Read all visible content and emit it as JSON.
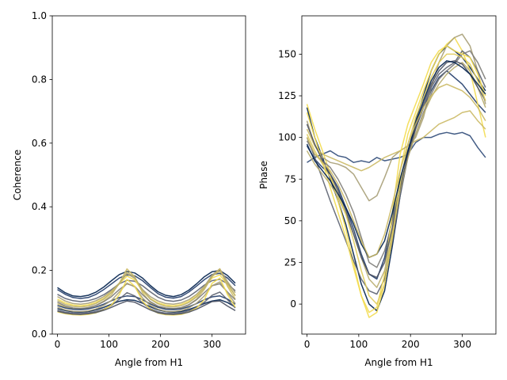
{
  "chart_data": [
    {
      "type": "line",
      "xlabel": "Angle from H1",
      "ylabel": "Coherence",
      "xlim": [
        -10,
        365
      ],
      "ylim": [
        0,
        1.0
      ],
      "xticks": [
        0,
        100,
        200,
        300
      ],
      "yticks": [
        0.0,
        0.2,
        0.4,
        0.6,
        0.8,
        1.0
      ],
      "ytick_labels": [
        "0.0",
        "0.2",
        "0.4",
        "0.6",
        "0.8",
        "1.0"
      ],
      "grid": false,
      "x": [
        0,
        15,
        30,
        45,
        60,
        75,
        90,
        105,
        120,
        135,
        150,
        165,
        180,
        195,
        210,
        225,
        240,
        255,
        270,
        285,
        300,
        315,
        330,
        345
      ],
      "series": [
        {
          "color": "#00204c",
          "values": [
            0.146,
            0.13,
            0.12,
            0.118,
            0.122,
            0.132,
            0.148,
            0.168,
            0.187,
            0.197,
            0.192,
            0.176,
            0.153,
            0.133,
            0.122,
            0.118,
            0.124,
            0.138,
            0.158,
            0.18,
            0.196,
            0.2,
            0.184,
            0.16
          ]
        },
        {
          "color": "#1f3a68",
          "values": [
            0.14,
            0.125,
            0.115,
            0.112,
            0.115,
            0.125,
            0.14,
            0.158,
            0.176,
            0.186,
            0.183,
            0.168,
            0.147,
            0.127,
            0.116,
            0.113,
            0.118,
            0.132,
            0.151,
            0.171,
            0.187,
            0.191,
            0.176,
            0.152
          ]
        },
        {
          "color": "#5c6270",
          "values": [
            0.125,
            0.112,
            0.105,
            0.102,
            0.105,
            0.112,
            0.124,
            0.14,
            0.158,
            0.169,
            0.166,
            0.152,
            0.133,
            0.116,
            0.106,
            0.103,
            0.107,
            0.118,
            0.135,
            0.154,
            0.168,
            0.172,
            0.158,
            0.136
          ]
        },
        {
          "color": "#a69d75",
          "values": [
            0.118,
            0.104,
            0.096,
            0.094,
            0.097,
            0.105,
            0.118,
            0.136,
            0.16,
            0.19,
            0.175,
            0.14,
            0.118,
            0.104,
            0.096,
            0.094,
            0.098,
            0.108,
            0.125,
            0.15,
            0.185,
            0.205,
            0.165,
            0.13
          ]
        },
        {
          "color": "#f3dc4f",
          "values": [
            0.11,
            0.098,
            0.091,
            0.089,
            0.092,
            0.1,
            0.113,
            0.132,
            0.158,
            0.182,
            0.17,
            0.135,
            0.112,
            0.098,
            0.091,
            0.089,
            0.093,
            0.103,
            0.12,
            0.146,
            0.176,
            0.186,
            0.154,
            0.122
          ]
        },
        {
          "color": "#cbb964",
          "values": [
            0.095,
            0.085,
            0.08,
            0.079,
            0.082,
            0.09,
            0.104,
            0.124,
            0.16,
            0.205,
            0.18,
            0.13,
            0.1,
            0.086,
            0.08,
            0.079,
            0.082,
            0.092,
            0.11,
            0.14,
            0.18,
            0.205,
            0.15,
            0.11
          ]
        },
        {
          "color": "#7d7c78",
          "values": [
            0.1,
            0.088,
            0.082,
            0.08,
            0.083,
            0.09,
            0.102,
            0.118,
            0.14,
            0.158,
            0.15,
            0.124,
            0.102,
            0.088,
            0.082,
            0.08,
            0.083,
            0.092,
            0.108,
            0.13,
            0.152,
            0.158,
            0.132,
            0.108
          ]
        },
        {
          "color": "#1f3a68",
          "values": [
            0.09,
            0.082,
            0.078,
            0.077,
            0.079,
            0.085,
            0.094,
            0.105,
            0.115,
            0.12,
            0.118,
            0.108,
            0.095,
            0.084,
            0.078,
            0.077,
            0.079,
            0.086,
            0.096,
            0.108,
            0.117,
            0.12,
            0.11,
            0.094
          ]
        },
        {
          "color": "#00204c",
          "values": [
            0.08,
            0.074,
            0.07,
            0.069,
            0.071,
            0.076,
            0.084,
            0.094,
            0.103,
            0.108,
            0.106,
            0.097,
            0.086,
            0.076,
            0.071,
            0.069,
            0.071,
            0.077,
            0.086,
            0.096,
            0.104,
            0.108,
            0.099,
            0.085
          ]
        },
        {
          "color": "#5c6270",
          "values": [
            0.075,
            0.069,
            0.066,
            0.065,
            0.067,
            0.071,
            0.078,
            0.09,
            0.11,
            0.13,
            0.12,
            0.098,
            0.08,
            0.07,
            0.066,
            0.065,
            0.067,
            0.073,
            0.084,
            0.1,
            0.122,
            0.132,
            0.108,
            0.082
          ]
        },
        {
          "color": "#a69d75",
          "values": [
            0.085,
            0.076,
            0.072,
            0.071,
            0.073,
            0.079,
            0.09,
            0.106,
            0.132,
            0.16,
            0.148,
            0.114,
            0.09,
            0.078,
            0.072,
            0.071,
            0.074,
            0.082,
            0.097,
            0.12,
            0.152,
            0.164,
            0.13,
            0.096
          ]
        },
        {
          "color": "#f3dc4f",
          "values": [
            0.07,
            0.064,
            0.061,
            0.06,
            0.062,
            0.067,
            0.076,
            0.092,
            0.124,
            0.172,
            0.15,
            0.104,
            0.078,
            0.066,
            0.061,
            0.06,
            0.062,
            0.069,
            0.082,
            0.108,
            0.16,
            0.176,
            0.124,
            0.085
          ]
        },
        {
          "color": "#4a5060",
          "values": [
            0.072,
            0.066,
            0.063,
            0.062,
            0.064,
            0.068,
            0.075,
            0.084,
            0.095,
            0.104,
            0.1,
            0.088,
            0.076,
            0.067,
            0.063,
            0.062,
            0.064,
            0.069,
            0.078,
            0.09,
            0.102,
            0.104,
            0.088,
            0.074
          ]
        },
        {
          "color": "#b8ad6e",
          "values": [
            0.105,
            0.093,
            0.087,
            0.085,
            0.088,
            0.096,
            0.11,
            0.13,
            0.158,
            0.195,
            0.178,
            0.138,
            0.11,
            0.095,
            0.087,
            0.085,
            0.089,
            0.099,
            0.117,
            0.145,
            0.182,
            0.198,
            0.16,
            0.12
          ]
        }
      ]
    },
    {
      "type": "line",
      "xlabel": "Angle from H1",
      "ylabel": "Phase",
      "xlim": [
        -10,
        365
      ],
      "ylim": [
        -18,
        173
      ],
      "xticks": [
        0,
        100,
        200,
        300
      ],
      "yticks": [
        0,
        25,
        50,
        75,
        100,
        125,
        150
      ],
      "grid": false,
      "x": [
        0,
        15,
        30,
        45,
        60,
        75,
        90,
        105,
        120,
        135,
        150,
        165,
        180,
        195,
        210,
        225,
        240,
        255,
        270,
        285,
        300,
        315,
        330,
        345
      ],
      "series": [
        {
          "color": "#00204c",
          "values": [
            118,
            100,
            88,
            75,
            62,
            48,
            30,
            12,
            0,
            -4,
            8,
            35,
            65,
            90,
            110,
            125,
            140,
            150,
            155,
            152,
            148,
            142,
            135,
            128
          ]
        },
        {
          "color": "#1f3a68",
          "values": [
            95,
            87,
            82,
            78,
            70,
            58,
            45,
            30,
            18,
            15,
            28,
            52,
            75,
            92,
            106,
            118,
            128,
            136,
            140,
            136,
            132,
            126,
            120,
            115
          ]
        },
        {
          "color": "#2f4a78",
          "values": [
            85,
            88,
            90,
            92,
            89,
            88,
            85,
            86,
            85,
            88,
            86,
            87,
            88,
            90,
            97,
            100,
            100,
            102,
            103,
            102,
            103,
            101,
            94,
            88
          ]
        },
        {
          "color": "#f3dc4f",
          "values": [
            120,
            105,
            92,
            78,
            62,
            45,
            25,
            5,
            -8,
            -5,
            12,
            45,
            80,
            102,
            115,
            128,
            140,
            150,
            156,
            160,
            152,
            140,
            120,
            100
          ]
        },
        {
          "color": "#a69d75",
          "values": [
            110,
            95,
            88,
            85,
            84,
            82,
            78,
            70,
            62,
            65,
            76,
            88,
            92,
            95,
            100,
            112,
            130,
            145,
            155,
            160,
            162,
            155,
            140,
            120
          ]
        },
        {
          "color": "#5c6270",
          "values": [
            100,
            88,
            75,
            62,
            50,
            38,
            26,
            15,
            8,
            6,
            15,
            38,
            65,
            88,
            105,
            118,
            130,
            138,
            142,
            145,
            152,
            148,
            140,
            130
          ]
        },
        {
          "color": "#cbb964",
          "values": [
            105,
            95,
            90,
            88,
            86,
            84,
            82,
            80,
            82,
            85,
            88,
            90,
            92,
            95,
            98,
            100,
            104,
            108,
            110,
            112,
            115,
            116,
            110,
            105
          ]
        },
        {
          "color": "#7d7c78",
          "values": [
            98,
            90,
            86,
            82,
            75,
            66,
            55,
            40,
            25,
            22,
            32,
            50,
            70,
            88,
            102,
            115,
            126,
            135,
            140,
            144,
            150,
            152,
            145,
            135
          ]
        },
        {
          "color": "#f3dc4f",
          "values": [
            115,
            100,
            85,
            70,
            55,
            40,
            22,
            5,
            -5,
            -2,
            18,
            55,
            90,
            108,
            120,
            132,
            145,
            152,
            155,
            152,
            150,
            148,
            138,
            125
          ]
        },
        {
          "color": "#b8ad6e",
          "values": [
            92,
            84,
            78,
            72,
            64,
            54,
            42,
            28,
            15,
            10,
            20,
            42,
            68,
            88,
            102,
            114,
            124,
            132,
            138,
            142,
            145,
            140,
            130,
            118
          ]
        },
        {
          "color": "#4a5060",
          "values": [
            108,
            96,
            86,
            78,
            68,
            56,
            42,
            28,
            18,
            16,
            25,
            46,
            70,
            90,
            106,
            120,
            132,
            140,
            145,
            146,
            144,
            138,
            130,
            122
          ]
        },
        {
          "color": "#e0cc5a",
          "values": [
            102,
            92,
            84,
            76,
            66,
            54,
            38,
            20,
            5,
            0,
            12,
            40,
            72,
            96,
            112,
            124,
            136,
            145,
            150,
            150,
            148,
            144,
            134,
            122
          ]
        },
        {
          "color": "#00204c",
          "values": [
            96,
            86,
            80,
            74,
            66,
            58,
            48,
            36,
            28,
            30,
            38,
            55,
            75,
            92,
            108,
            122,
            134,
            142,
            146,
            145,
            142,
            138,
            132,
            126
          ]
        },
        {
          "color": "#cbb964",
          "values": [
            100,
            90,
            85,
            80,
            72,
            62,
            50,
            38,
            28,
            30,
            42,
            60,
            80,
            96,
            108,
            118,
            125,
            130,
            132,
            130,
            128,
            124,
            118,
            110
          ]
        }
      ]
    }
  ]
}
